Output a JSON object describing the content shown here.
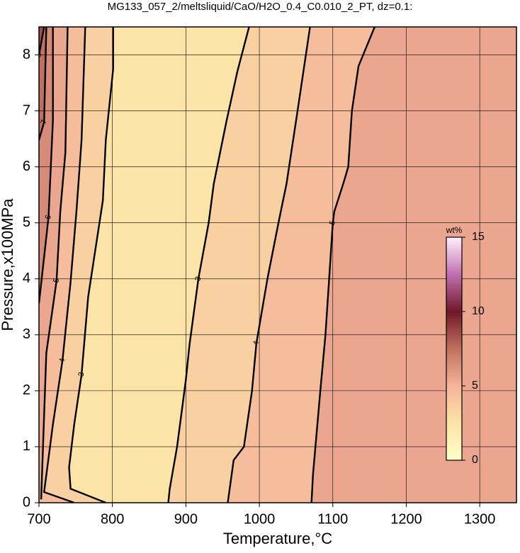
{
  "chart_data": {
    "type": "contour",
    "title": "MG133_057_2/meltsliquid/CaO/H2O_0.4_C0.010_2_PT, dz=0.1:",
    "x_label": "Temperature,°C",
    "y_label": "Pressure,x100MPa",
    "xlim": [
      700,
      1350
    ],
    "ylim": [
      0,
      8.5
    ],
    "xticks": [
      700,
      800,
      900,
      1000,
      1100,
      1200,
      1300
    ],
    "yticks": [
      0,
      1,
      2,
      3,
      4,
      5,
      6,
      7,
      8
    ],
    "grid": true,
    "contours": [
      {
        "level": 3,
        "x": [
          791,
          743,
          741,
          748,
          758,
          767,
          787,
          791,
          801,
          801
        ],
        "y": [
          0,
          0.25,
          0.63,
          1.4,
          2.29,
          3.68,
          5.4,
          6.48,
          7.75,
          8.5
        ]
      },
      {
        "level": 4,
        "x": [
          748,
          707,
          719,
          732,
          743,
          751,
          758,
          763
        ],
        "y": [
          0,
          0.19,
          1.4,
          2.54,
          3.94,
          5.2,
          6.48,
          8.5
        ]
      },
      {
        "level": 5,
        "x": [
          703,
          710,
          724,
          729,
          736,
          739
        ],
        "y": [
          0.06,
          2.67,
          3.97,
          5.2,
          6.26,
          8.5
        ]
      },
      {
        "level": 6,
        "x": [
          700,
          713,
          719,
          719
        ],
        "y": [
          3.56,
          5.1,
          6.83,
          8.5
        ]
      },
      {
        "level": 7,
        "x": [
          700,
          707,
          710
        ],
        "y": [
          6.48,
          6.8,
          8.5
        ]
      },
      {
        "level": 8,
        "x": [
          700,
          707
        ],
        "y": [
          8,
          8.5
        ]
      },
      {
        "level": 3,
        "x": [
          876,
          878,
          888,
          900,
          905,
          917,
          931,
          938,
          955,
          970,
          986
        ],
        "y": [
          0,
          0.25,
          1,
          2.2,
          2.83,
          4,
          5,
          5.7,
          6.8,
          7.7,
          8.5
        ]
      },
      {
        "level": 4,
        "x": [
          957,
          965,
          979,
          990,
          996,
          1011,
          1026,
          1037,
          1052,
          1069
        ],
        "y": [
          0,
          0.76,
          1,
          2,
          2.85,
          4,
          5,
          5.7,
          7,
          8.5
        ]
      },
      {
        "level": 5,
        "x": [
          1071,
          1073,
          1083,
          1090,
          1095,
          1100,
          1102,
          1114,
          1121,
          1126,
          1135,
          1157
        ],
        "y": [
          0,
          0.5,
          2,
          3,
          4,
          5,
          5.2,
          5.69,
          6,
          7,
          7.8,
          8.5
        ]
      }
    ],
    "colorbar": {
      "label": "wt%",
      "lim": [
        0,
        15
      ],
      "ticks": [
        0,
        5,
        10,
        15
      ],
      "colors": [
        "#ffffc8",
        "#fce3a8",
        "#f5b49a",
        "#c07060",
        "#701828",
        "#c070b0",
        "#fff0ff"
      ]
    }
  }
}
